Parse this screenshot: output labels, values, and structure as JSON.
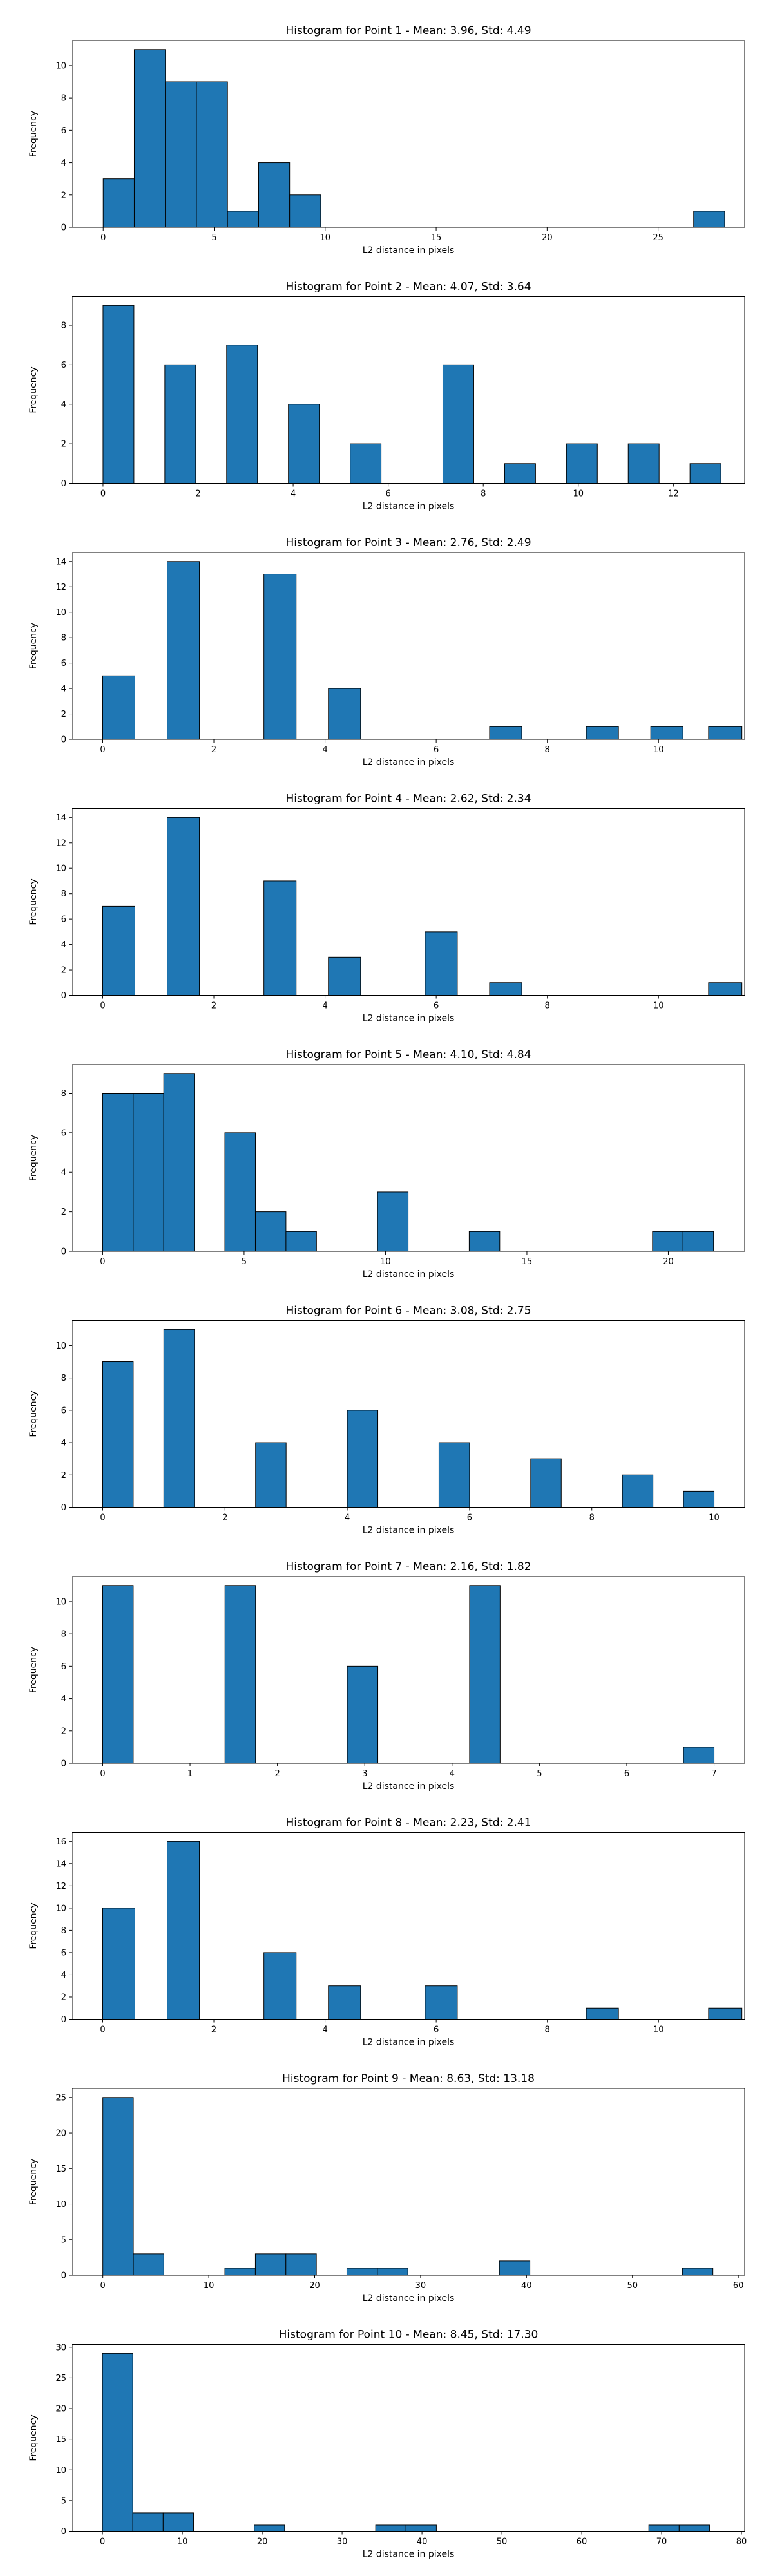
{
  "figure": {
    "background": "#ffffff",
    "bar_color": "#1f77b4",
    "edge_color": "#000000"
  },
  "chart_data": [
    {
      "type": "bar",
      "title": "Histogram for Point 1 - Mean: 3.96, Std: 4.49",
      "xlabel": "L2 distance in pixels",
      "ylabel": "Frequency",
      "xlim": [
        -1.4,
        28.9
      ],
      "ylim": [
        0,
        11.55
      ],
      "xticks": [
        0,
        5,
        10,
        15,
        20,
        25
      ],
      "yticks": [
        0,
        2,
        4,
        6,
        8,
        10
      ],
      "bins": [
        [
          0,
          1.4,
          3
        ],
        [
          1.4,
          2.8,
          11
        ],
        [
          2.8,
          4.2,
          9
        ],
        [
          4.2,
          5.6,
          9
        ],
        [
          5.6,
          7.0,
          1
        ],
        [
          7.0,
          8.4,
          4
        ],
        [
          8.4,
          9.8,
          2
        ],
        [
          26.6,
          28.0,
          1
        ]
      ]
    },
    {
      "type": "bar",
      "title": "Histogram for Point 2 - Mean: 4.07, Std: 3.64",
      "xlabel": "L2 distance in pixels",
      "ylabel": "Frequency",
      "xlim": [
        -0.65,
        13.5
      ],
      "ylim": [
        0,
        9.45
      ],
      "xticks": [
        0,
        2,
        4,
        6,
        8,
        10,
        12
      ],
      "yticks": [
        0,
        2,
        4,
        6,
        8
      ],
      "bins": [
        [
          0,
          0.65,
          9
        ],
        [
          1.3,
          1.95,
          6
        ],
        [
          2.6,
          3.25,
          7
        ],
        [
          3.9,
          4.55,
          4
        ],
        [
          5.2,
          5.85,
          2
        ],
        [
          7.15,
          7.8,
          6
        ],
        [
          8.45,
          9.1,
          1
        ],
        [
          9.75,
          10.4,
          2
        ],
        [
          11.05,
          11.7,
          2
        ],
        [
          12.35,
          13.0,
          1
        ]
      ]
    },
    {
      "type": "bar",
      "title": "Histogram for Point 3 - Mean: 2.76, Std: 2.49",
      "xlabel": "L2 distance in pixels",
      "ylabel": "Frequency",
      "xlim": [
        -0.55,
        11.55
      ],
      "ylim": [
        0,
        14.7
      ],
      "xticks": [
        0,
        2,
        4,
        6,
        8,
        10
      ],
      "yticks": [
        0,
        2,
        4,
        6,
        8,
        10,
        12,
        14
      ],
      "bins": [
        [
          0,
          0.58,
          5
        ],
        [
          1.16,
          1.74,
          14
        ],
        [
          2.9,
          3.48,
          13
        ],
        [
          4.06,
          4.64,
          4
        ],
        [
          6.96,
          7.54,
          1
        ],
        [
          8.7,
          9.28,
          1
        ],
        [
          9.86,
          10.44,
          1
        ],
        [
          10.9,
          11.5,
          1
        ]
      ]
    },
    {
      "type": "bar",
      "title": "Histogram for Point 4 - Mean: 2.62, Std: 2.34",
      "xlabel": "L2 distance in pixels",
      "ylabel": "Frequency",
      "xlim": [
        -0.55,
        11.55
      ],
      "ylim": [
        0,
        14.7
      ],
      "xticks": [
        0,
        2,
        4,
        6,
        8,
        10
      ],
      "yticks": [
        0,
        2,
        4,
        6,
        8,
        10,
        12,
        14
      ],
      "bins": [
        [
          0,
          0.58,
          7
        ],
        [
          1.16,
          1.74,
          14
        ],
        [
          2.9,
          3.48,
          9
        ],
        [
          4.06,
          4.64,
          3
        ],
        [
          5.8,
          6.38,
          5
        ],
        [
          6.96,
          7.54,
          1
        ],
        [
          10.9,
          11.5,
          1
        ]
      ]
    },
    {
      "type": "bar",
      "title": "Histogram for Point 5 - Mean: 4.10, Std: 4.84",
      "xlabel": "L2 distance in pixels",
      "ylabel": "Frequency",
      "xlim": [
        -1.08,
        22.7
      ],
      "ylim": [
        0,
        9.45
      ],
      "xticks": [
        0,
        5,
        10,
        15,
        20
      ],
      "yticks": [
        0,
        2,
        4,
        6,
        8
      ],
      "bins": [
        [
          0,
          1.08,
          8
        ],
        [
          1.08,
          2.16,
          8
        ],
        [
          2.16,
          3.24,
          9
        ],
        [
          4.32,
          5.4,
          6
        ],
        [
          5.4,
          6.48,
          2
        ],
        [
          6.48,
          7.56,
          1
        ],
        [
          9.72,
          10.8,
          3
        ],
        [
          12.96,
          14.04,
          1
        ],
        [
          19.44,
          20.52,
          1
        ],
        [
          20.52,
          21.6,
          1
        ]
      ]
    },
    {
      "type": "bar",
      "title": "Histogram for Point 6 - Mean: 3.08, Std: 2.75",
      "xlabel": "L2 distance in pixels",
      "ylabel": "Frequency",
      "xlim": [
        -0.5,
        10.5
      ],
      "ylim": [
        0,
        11.55
      ],
      "xticks": [
        0,
        2,
        4,
        6,
        8,
        10
      ],
      "yticks": [
        0,
        2,
        4,
        6,
        8,
        10
      ],
      "bins": [
        [
          0,
          0.5,
          9
        ],
        [
          1.0,
          1.5,
          11
        ],
        [
          2.5,
          3.0,
          4
        ],
        [
          4.0,
          4.5,
          6
        ],
        [
          5.5,
          6.0,
          4
        ],
        [
          7.0,
          7.5,
          3
        ],
        [
          8.5,
          9.0,
          2
        ],
        [
          9.5,
          10.0,
          1
        ]
      ]
    },
    {
      "type": "bar",
      "title": "Histogram for Point 7 - Mean: 2.16, Std: 1.82",
      "xlabel": "L2 distance in pixels",
      "ylabel": "Frequency",
      "xlim": [
        -0.35,
        7.35
      ],
      "ylim": [
        0,
        11.55
      ],
      "xticks": [
        0,
        1,
        2,
        3,
        4,
        5,
        6,
        7
      ],
      "yticks": [
        0,
        2,
        4,
        6,
        8,
        10
      ],
      "bins": [
        [
          0,
          0.35,
          11
        ],
        [
          1.4,
          1.75,
          11
        ],
        [
          2.8,
          3.15,
          6
        ],
        [
          4.2,
          4.55,
          11
        ],
        [
          6.65,
          7.0,
          1
        ]
      ]
    },
    {
      "type": "bar",
      "title": "Histogram for Point 8 - Mean: 2.23, Std: 2.41",
      "xlabel": "L2 distance in pixels",
      "ylabel": "Frequency",
      "xlim": [
        -0.55,
        11.55
      ],
      "ylim": [
        0,
        16.8
      ],
      "xticks": [
        0,
        2,
        4,
        6,
        8,
        10
      ],
      "yticks": [
        0,
        2,
        4,
        6,
        8,
        10,
        12,
        14,
        16
      ],
      "bins": [
        [
          0,
          0.58,
          10
        ],
        [
          1.16,
          1.74,
          16
        ],
        [
          2.9,
          3.48,
          6
        ],
        [
          4.06,
          4.64,
          3
        ],
        [
          5.8,
          6.38,
          3
        ],
        [
          8.7,
          9.28,
          1
        ],
        [
          10.9,
          11.5,
          1
        ]
      ]
    },
    {
      "type": "bar",
      "title": "Histogram for Point 9 - Mean: 8.63, Std: 13.18",
      "xlabel": "L2 distance in pixels",
      "ylabel": "Frequency",
      "xlim": [
        -2.9,
        60.6
      ],
      "ylim": [
        0,
        26.25
      ],
      "xticks": [
        0,
        10,
        20,
        30,
        40,
        50,
        60
      ],
      "yticks": [
        0,
        5,
        10,
        15,
        20,
        25
      ],
      "bins": [
        [
          0,
          2.88,
          25
        ],
        [
          2.88,
          5.76,
          3
        ],
        [
          11.52,
          14.4,
          1
        ],
        [
          14.4,
          17.28,
          3
        ],
        [
          17.28,
          20.16,
          3
        ],
        [
          23.04,
          25.92,
          1
        ],
        [
          25.92,
          28.8,
          1
        ],
        [
          37.44,
          40.32,
          2
        ],
        [
          54.72,
          57.6,
          1
        ]
      ]
    },
    {
      "type": "bar",
      "title": "Histogram for Point 10 - Mean: 8.45, Std: 17.30",
      "xlabel": "L2 distance in pixels",
      "ylabel": "Frequency",
      "xlim": [
        -3.8,
        80.4
      ],
      "ylim": [
        0,
        30.45
      ],
      "xticks": [
        0,
        10,
        20,
        30,
        40,
        50,
        60,
        70,
        80
      ],
      "yticks": [
        0,
        5,
        10,
        15,
        20,
        25,
        30
      ],
      "bins": [
        [
          0,
          3.8,
          29
        ],
        [
          3.8,
          7.6,
          3
        ],
        [
          7.6,
          11.4,
          3
        ],
        [
          19.0,
          22.8,
          1
        ],
        [
          34.2,
          38.0,
          1
        ],
        [
          38.0,
          41.8,
          1
        ],
        [
          68.4,
          72.2,
          1
        ],
        [
          72.2,
          76.0,
          1
        ]
      ]
    }
  ]
}
